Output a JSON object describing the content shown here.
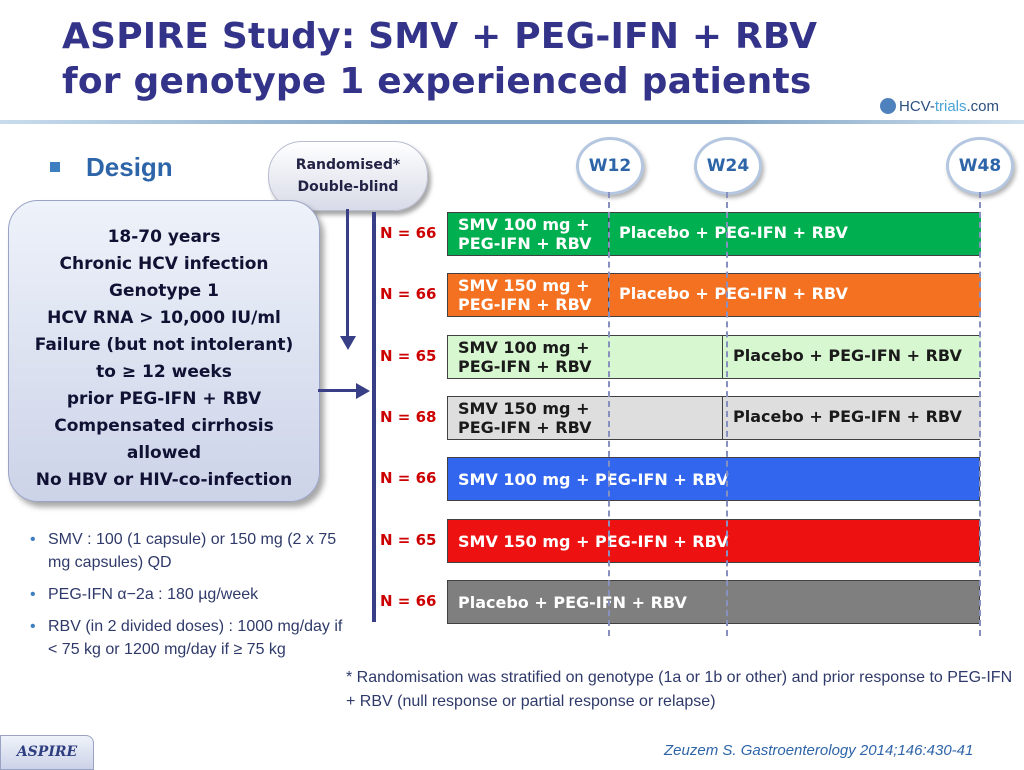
{
  "header": {
    "title_line1": "ASPIRE Study: SMV + PEG-IFN + RBV",
    "title_line2": "for genotype 1 experienced patients",
    "logo_main": "HCV-",
    "logo_accent": "trials",
    "logo_suffix": ".com"
  },
  "design": {
    "label": "Design",
    "randomised_line1": "Randomised*",
    "randomised_line2": "Double-blind"
  },
  "criteria": [
    "18-70 years",
    "Chronic HCV infection",
    "Genotype 1",
    "HCV RNA > 10,000 IU/ml",
    "Failure (but not intolerant)",
    "to ≥ 12 weeks",
    "prior PEG-IFN + RBV",
    "Compensated cirrhosis",
    "allowed",
    "No HBV or HIV-co-infection"
  ],
  "weeks": [
    "W12",
    "W24",
    "W48"
  ],
  "arms": [
    {
      "n": "N = 66",
      "active_line1": "SMV 100 mg +",
      "active_line2": "PEG-IFN + RBV",
      "placebo": "Placebo + PEG-IFN + RBV",
      "active_weeks": 12,
      "active_color": "#00b050",
      "placebo_color": "#00b050"
    },
    {
      "n": "N = 66",
      "active_line1": "SMV 150 mg +",
      "active_line2": "PEG-IFN + RBV",
      "placebo": "Placebo + PEG-IFN + RBV",
      "active_weeks": 12,
      "active_color": "#f37121",
      "placebo_color": "#f37121"
    },
    {
      "n": "N = 65",
      "active_line1": "SMV 100 mg +",
      "active_line2": "PEG-IFN + RBV",
      "placebo": "Placebo + PEG-IFN + RBV",
      "active_weeks": 24,
      "active_color": "#d6f7d0",
      "placebo_color": "#d6f7d0"
    },
    {
      "n": "N = 68",
      "active_line1": "SMV 150 mg +",
      "active_line2": "PEG-IFN + RBV",
      "placebo": "Placebo + PEG-IFN + RBV",
      "active_weeks": 24,
      "active_color": "#dedede",
      "placebo_color": "#dedede"
    },
    {
      "n": "N = 66",
      "full": "SMV 100 mg + PEG-IFN + RBV",
      "color": "#3366ee"
    },
    {
      "n": "N = 65",
      "full": "SMV 150 mg + PEG-IFN + RBV",
      "color": "#ee1111"
    },
    {
      "n": "N = 66",
      "full": "Placebo + PEG-IFN + RBV",
      "color": "#7f7f7f"
    }
  ],
  "drugs": [
    "SMV : 100 (1 capsule) or 150 mg (2 x 75 mg  capsules) QD",
    "PEG-IFN α−2a : 180 µg/week",
    "RBV (in 2 divided doses) : 1000 mg/day if < 75 kg or 1200 mg/day if ≥ 75 kg"
  ],
  "footnote": "* Randomisation was stratified on genotype (1a or 1b or other) and prior response to PEG-IFN + RBV (null response or partial response or relapse)",
  "citation": "Zeuzem S. Gastroenterology 2014;146:430-41",
  "tag": "ASPIRE"
}
